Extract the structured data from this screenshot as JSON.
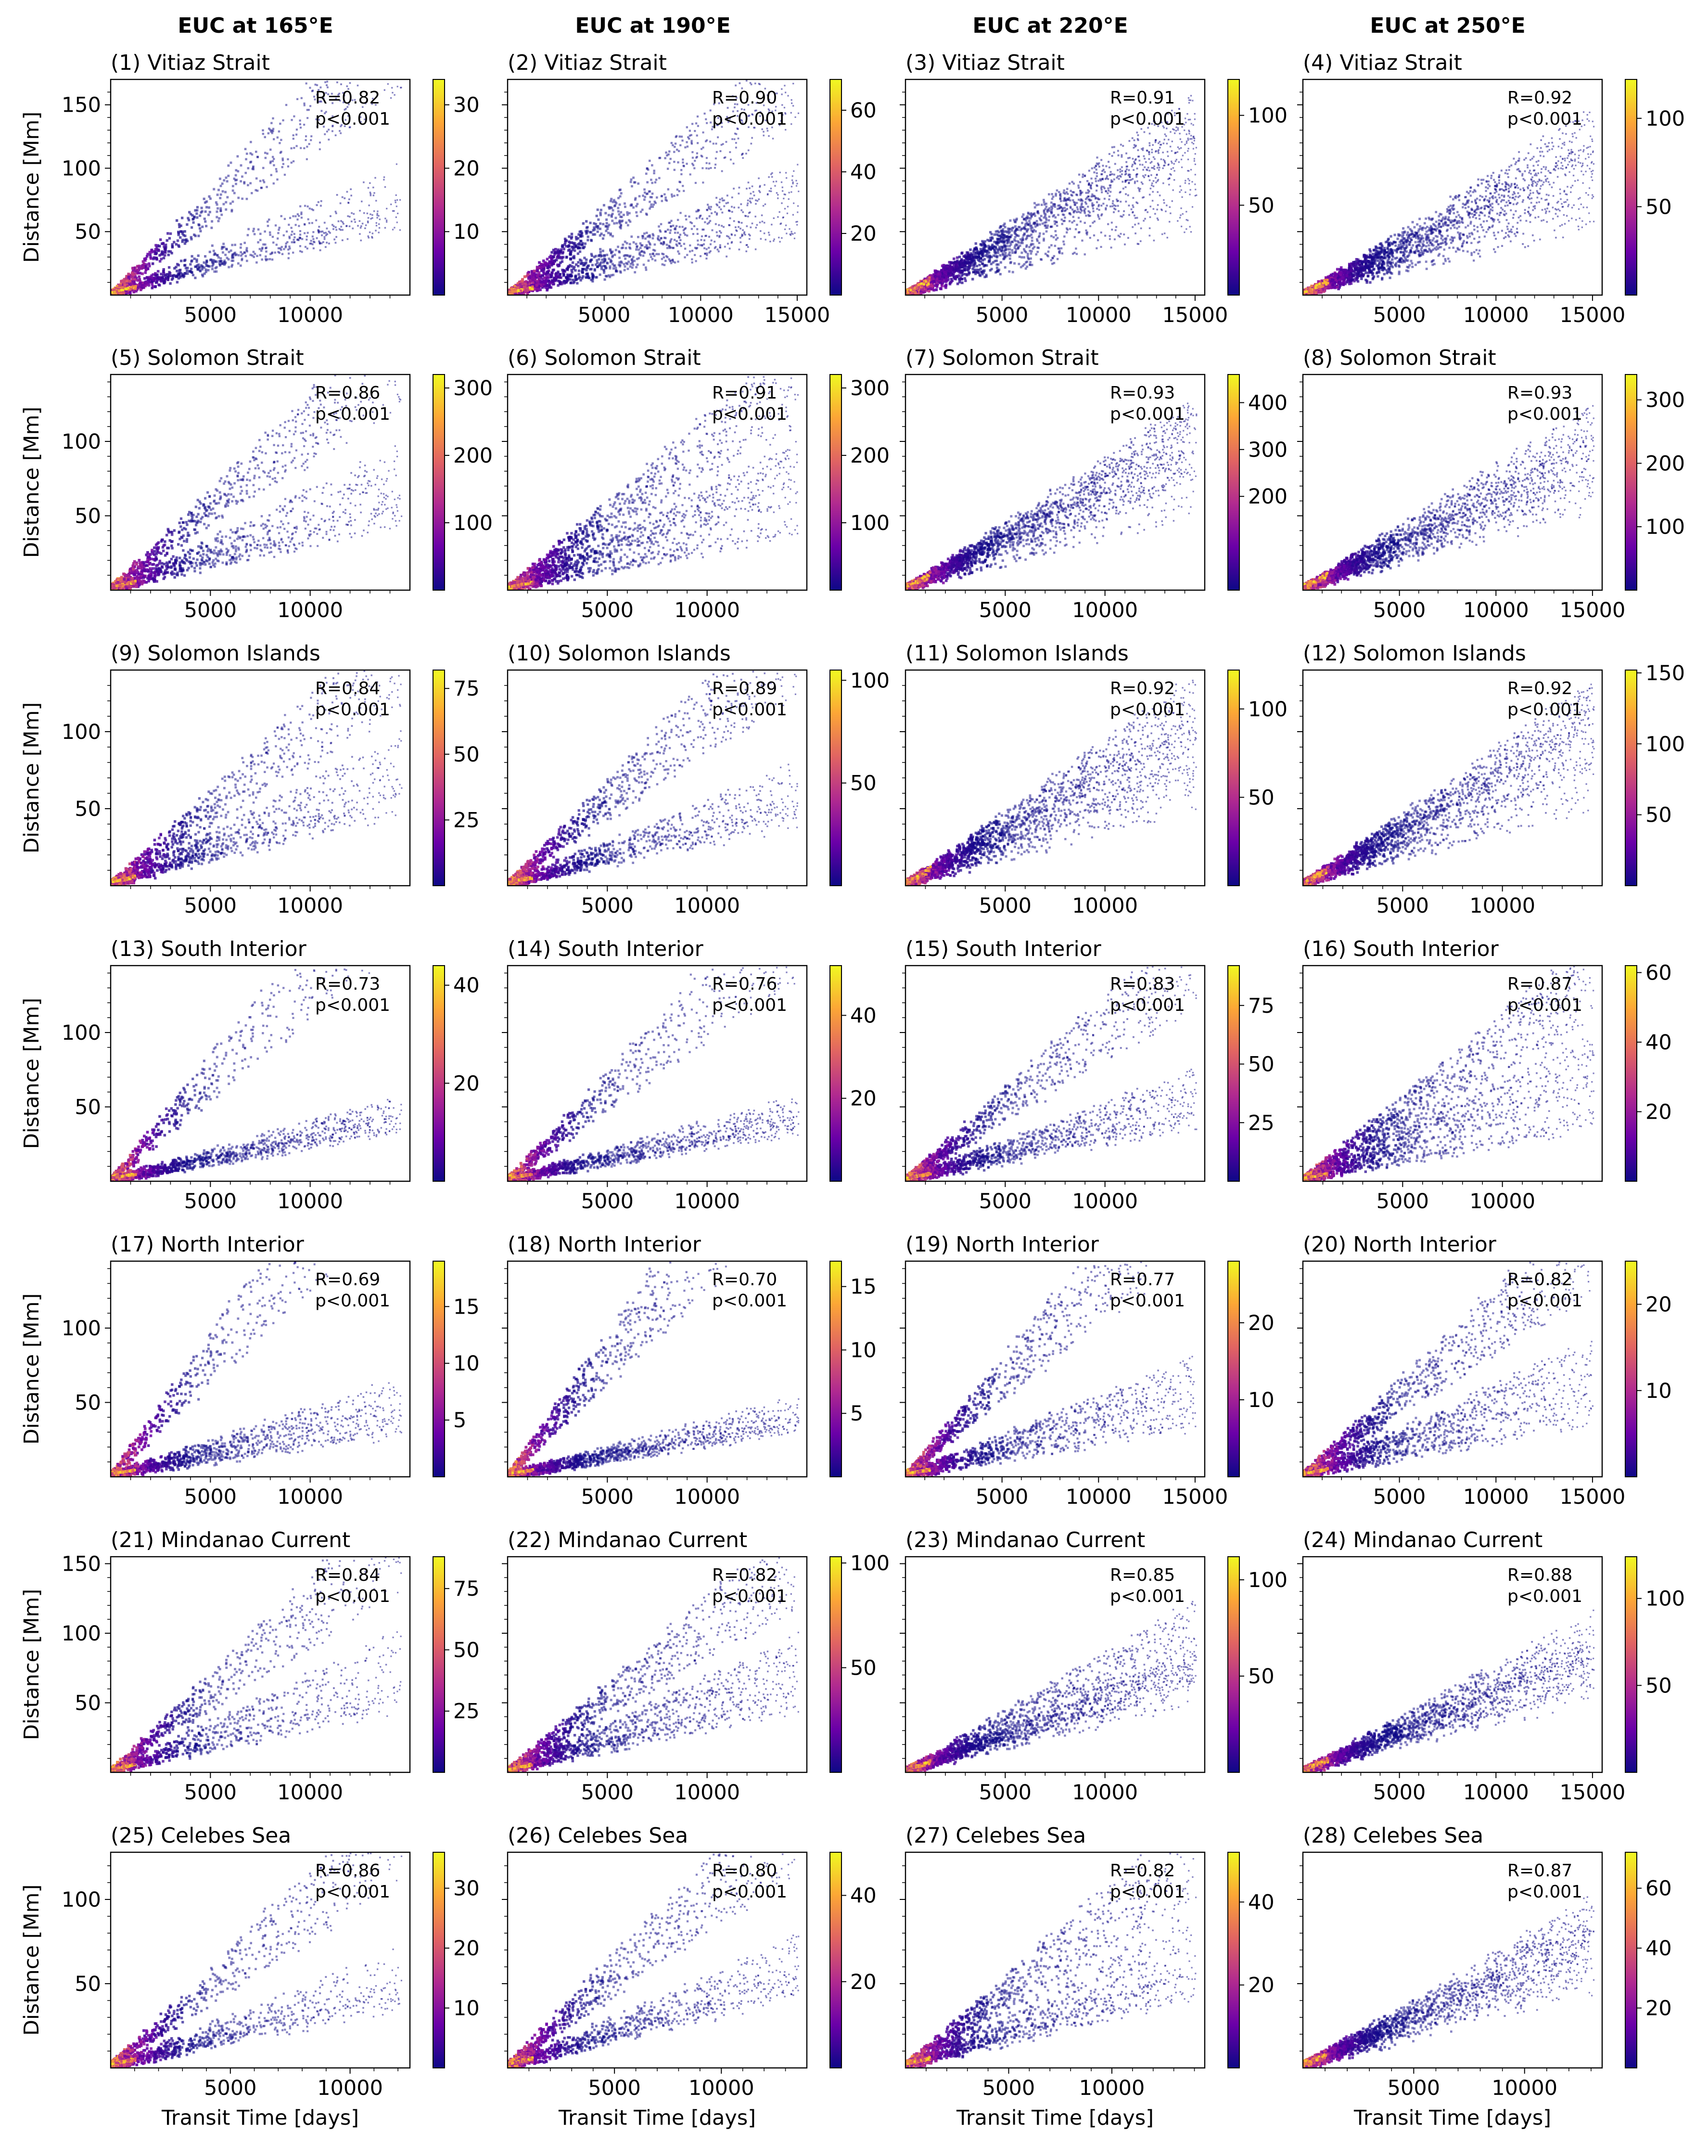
{
  "column_titles": [
    "EUC at 165°E",
    "EUC at 190°E",
    "EUC at 220°E",
    "EUC at 250°E"
  ],
  "shared_labels": {
    "ylabel": "Distance [Mm]",
    "xlabel": "Transit Time [days]"
  },
  "colormap": {
    "name": "plasma",
    "stops": [
      "#0d0887",
      "#6a00a8",
      "#b12a90",
      "#e16462",
      "#fca636",
      "#f0f921"
    ]
  },
  "chart_data": [
    {
      "type": "heatmap",
      "title": "(1) Vitiaz Strait",
      "row": 0,
      "col": 0,
      "stat_r": "R=0.82",
      "stat_p": "p<0.001",
      "xlim": [
        0,
        15000
      ],
      "ylim": [
        0,
        170
      ],
      "xticks": [
        5000,
        10000
      ],
      "yticks": [
        50,
        100,
        150
      ],
      "clim": [
        0,
        34
      ],
      "cticks": [
        10,
        20,
        30
      ],
      "branches": [
        [
          4.2,
          0.35
        ],
        [
          14,
          0.7
        ],
        [
          5.5,
          0.5
        ]
      ]
    },
    {
      "type": "heatmap",
      "title": "(2) Vitiaz Strait",
      "row": 0,
      "col": 1,
      "stat_r": "R=0.90",
      "stat_p": "p<0.001",
      "xlim": [
        0,
        15500
      ],
      "ylim": [
        0,
        170
      ],
      "xticks": [
        5000,
        10000,
        15000
      ],
      "yticks": [],
      "clim": [
        0,
        70
      ],
      "cticks": [
        20,
        40,
        60
      ],
      "branches": [
        [
          3.4,
          0.35
        ],
        [
          11.5,
          0.9
        ],
        [
          5.4,
          0.8
        ]
      ]
    },
    {
      "type": "heatmap",
      "title": "(3) Vitiaz Strait",
      "row": 0,
      "col": 2,
      "stat_r": "R=0.91",
      "stat_p": "p<0.001",
      "xlim": [
        0,
        15500
      ],
      "ylim": [
        0,
        170
      ],
      "xticks": [
        5000,
        10000,
        15000
      ],
      "yticks": [],
      "clim": [
        0,
        120
      ],
      "cticks": [
        50,
        100
      ],
      "branches": [
        [
          9,
          1.0
        ],
        [
          7.5,
          1.0
        ],
        [
          4.5,
          0.4
        ]
      ]
    },
    {
      "type": "heatmap",
      "title": "(4) Vitiaz Strait",
      "row": 0,
      "col": 3,
      "stat_r": "R=0.92",
      "stat_p": "p<0.001",
      "xlim": [
        0,
        15500
      ],
      "ylim": [
        0,
        170
      ],
      "xticks": [
        5000,
        10000,
        15000
      ],
      "yticks": [],
      "clim": [
        0,
        122
      ],
      "cticks": [
        50,
        100
      ],
      "branches": [
        [
          8.3,
          1.0
        ],
        [
          6.5,
          1.0
        ],
        [
          4.5,
          0.4
        ]
      ]
    },
    {
      "type": "heatmap",
      "title": "(5) Solomon Strait",
      "row": 1,
      "col": 0,
      "stat_r": "R=0.86",
      "stat_p": "p<0.001",
      "xlim": [
        0,
        15000
      ],
      "ylim": [
        0,
        145
      ],
      "xticks": [
        5000,
        10000
      ],
      "yticks": [
        50,
        100
      ],
      "clim": [
        0,
        320
      ],
      "cticks": [
        100,
        200,
        300
      ],
      "branches": [
        [
          3.4,
          0.35
        ],
        [
          11,
          0.7
        ],
        [
          5.2,
          0.6
        ]
      ]
    },
    {
      "type": "heatmap",
      "title": "(6) Solomon Strait",
      "row": 1,
      "col": 1,
      "stat_r": "R=0.91",
      "stat_p": "p<0.001",
      "xlim": [
        0,
        15000
      ],
      "ylim": [
        0,
        145
      ],
      "xticks": [
        5000,
        10000
      ],
      "yticks": [],
      "clim": [
        0,
        320
      ],
      "cticks": [
        100,
        200,
        300
      ],
      "branches": [
        [
          2.8,
          0.35
        ],
        [
          9.7,
          0.9
        ],
        [
          5.3,
          0.9
        ]
      ]
    },
    {
      "type": "heatmap",
      "title": "(7) Solomon Strait",
      "row": 1,
      "col": 2,
      "stat_r": "R=0.93",
      "stat_p": "p<0.001",
      "xlim": [
        0,
        15000
      ],
      "ylim": [
        0,
        145
      ],
      "xticks": [
        5000,
        10000
      ],
      "yticks": [],
      "clim": [
        0,
        460
      ],
      "cticks": [
        200,
        300,
        400
      ],
      "branches": [
        [
          7.5,
          1.0
        ],
        [
          6.5,
          1.0
        ],
        [
          4.5,
          0.4
        ]
      ]
    },
    {
      "type": "heatmap",
      "title": "(8) Solomon Strait",
      "row": 1,
      "col": 3,
      "stat_r": "R=0.93",
      "stat_p": "p<0.001",
      "xlim": [
        0,
        15500
      ],
      "ylim": [
        0,
        145
      ],
      "xticks": [
        5000,
        10000,
        15000
      ],
      "yticks": [],
      "clim": [
        0,
        340
      ],
      "cticks": [
        100,
        200,
        300
      ],
      "branches": [
        [
          7.1,
          1.0
        ],
        [
          5.6,
          1.0
        ],
        [
          4.5,
          0.4
        ]
      ]
    },
    {
      "type": "heatmap",
      "title": "(9) Solomon Islands",
      "row": 2,
      "col": 0,
      "stat_r": "R=0.84",
      "stat_p": "p<0.001",
      "xlim": [
        0,
        15000
      ],
      "ylim": [
        0,
        140
      ],
      "xticks": [
        5000,
        10000
      ],
      "yticks": [
        50,
        100
      ],
      "clim": [
        0,
        82
      ],
      "cticks": [
        25,
        50,
        75
      ],
      "branches": [
        [
          3.7,
          0.35
        ],
        [
          10,
          0.7
        ],
        [
          5.3,
          0.6
        ]
      ]
    },
    {
      "type": "heatmap",
      "title": "(10) Solomon Islands",
      "row": 2,
      "col": 1,
      "stat_r": "R=0.89",
      "stat_p": "p<0.001",
      "xlim": [
        0,
        15000
      ],
      "ylim": [
        0,
        140
      ],
      "xticks": [
        5000,
        10000
      ],
      "yticks": [],
      "clim": [
        0,
        105
      ],
      "cticks": [
        50,
        100
      ],
      "branches": [
        [
          3.1,
          0.35
        ],
        [
          11,
          0.9
        ],
        [
          4.2,
          0.7
        ]
      ]
    },
    {
      "type": "heatmap",
      "title": "(11) Solomon Islands",
      "row": 2,
      "col": 2,
      "stat_r": "R=0.92",
      "stat_p": "p<0.001",
      "xlim": [
        0,
        15000
      ],
      "ylim": [
        0,
        140
      ],
      "xticks": [
        5000,
        10000
      ],
      "yticks": [],
      "clim": [
        0,
        122
      ],
      "cticks": [
        50,
        100
      ],
      "branches": [
        [
          8,
          1.0
        ],
        [
          6.2,
          0.9
        ],
        [
          4.5,
          0.4
        ]
      ]
    },
    {
      "type": "heatmap",
      "title": "(12) Solomon Islands",
      "row": 2,
      "col": 3,
      "stat_r": "R=0.92",
      "stat_p": "p<0.001",
      "xlim": [
        0,
        15000
      ],
      "ylim": [
        0,
        140
      ],
      "xticks": [
        5000,
        10000
      ],
      "yticks": [],
      "clim": [
        0,
        152
      ],
      "cticks": [
        50,
        100,
        150
      ],
      "branches": [
        [
          7.8,
          1.0
        ],
        [
          6.5,
          0.9
        ],
        [
          4.5,
          0.4
        ]
      ]
    },
    {
      "type": "heatmap",
      "title": "(13) South Interior",
      "row": 3,
      "col": 0,
      "stat_r": "R=0.73",
      "stat_p": "p<0.001",
      "xlim": [
        0,
        15000
      ],
      "ylim": [
        0,
        145
      ],
      "xticks": [
        5000,
        10000
      ],
      "yticks": [
        50,
        100
      ],
      "clim": [
        0,
        44
      ],
      "cticks": [
        20,
        40
      ],
      "branches": [
        [
          2.6,
          0.35
        ],
        [
          14,
          0.6
        ],
        [
          3,
          0.9
        ]
      ]
    },
    {
      "type": "heatmap",
      "title": "(14) South Interior",
      "row": 3,
      "col": 1,
      "stat_r": "R=0.76",
      "stat_p": "p<0.001",
      "xlim": [
        0,
        15000
      ],
      "ylim": [
        0,
        145
      ],
      "xticks": [
        5000,
        10000
      ],
      "yticks": [],
      "clim": [
        0,
        52
      ],
      "cticks": [
        20,
        40
      ],
      "branches": [
        [
          2.6,
          0.35
        ],
        [
          12,
          0.7
        ],
        [
          3,
          0.9
        ]
      ]
    },
    {
      "type": "heatmap",
      "title": "(15) South Interior",
      "row": 3,
      "col": 2,
      "stat_r": "R=0.83",
      "stat_p": "p<0.001",
      "xlim": [
        0,
        15000
      ],
      "ylim": [
        0,
        145
      ],
      "xticks": [
        5000,
        10000
      ],
      "yticks": [],
      "clim": [
        0,
        92
      ],
      "cticks": [
        25,
        50,
        75
      ],
      "branches": [
        [
          2.8,
          0.35
        ],
        [
          10.3,
          0.9
        ],
        [
          4,
          0.9
        ]
      ]
    },
    {
      "type": "heatmap",
      "title": "(16) South Interior",
      "row": 3,
      "col": 3,
      "stat_r": "R=0.87",
      "stat_p": "p<0.001",
      "xlim": [
        0,
        15000
      ],
      "ylim": [
        0,
        145
      ],
      "xticks": [
        5000,
        10000
      ],
      "yticks": [],
      "clim": [
        0,
        62
      ],
      "cticks": [
        20,
        40,
        60
      ],
      "branches": [
        [
          2.8,
          0.3
        ],
        [
          9.2,
          1.0
        ],
        [
          5.2,
          0.9
        ]
      ]
    },
    {
      "type": "heatmap",
      "title": "(17) North Interior",
      "row": 4,
      "col": 0,
      "stat_r": "R=0.69",
      "stat_p": "p<0.001",
      "xlim": [
        0,
        15000
      ],
      "ylim": [
        0,
        145
      ],
      "xticks": [
        5000,
        10000
      ],
      "yticks": [
        50,
        100
      ],
      "clim": [
        0,
        19
      ],
      "cticks": [
        5,
        10,
        15
      ],
      "branches": [
        [
          2.2,
          0.4
        ],
        [
          16,
          0.6
        ],
        [
          3.5,
          0.8
        ]
      ]
    },
    {
      "type": "heatmap",
      "title": "(18) North Interior",
      "row": 4,
      "col": 1,
      "stat_r": "R=0.70",
      "stat_p": "p<0.001",
      "xlim": [
        0,
        15000
      ],
      "ylim": [
        0,
        145
      ],
      "xticks": [
        5000,
        10000
      ],
      "yticks": [],
      "clim": [
        0,
        17
      ],
      "cticks": [
        5,
        10,
        15
      ],
      "branches": [
        [
          2.3,
          0.4
        ],
        [
          16,
          0.9
        ],
        [
          2.8,
          0.9
        ]
      ]
    },
    {
      "type": "heatmap",
      "title": "(19) North Interior",
      "row": 4,
      "col": 2,
      "stat_r": "R=0.77",
      "stat_p": "p<0.001",
      "xlim": [
        0,
        15500
      ],
      "ylim": [
        0,
        145
      ],
      "xticks": [
        5000,
        10000,
        15000
      ],
      "yticks": [],
      "clim": [
        0,
        28
      ],
      "cticks": [
        10,
        20
      ],
      "branches": [
        [
          2.5,
          0.35
        ],
        [
          13,
          0.9
        ],
        [
          4.2,
          0.9
        ]
      ]
    },
    {
      "type": "heatmap",
      "title": "(20) North Interior",
      "row": 4,
      "col": 3,
      "stat_r": "R=0.82",
      "stat_p": "p<0.001",
      "xlim": [
        0,
        15500
      ],
      "ylim": [
        0,
        145
      ],
      "xticks": [
        5000,
        10000,
        15000
      ],
      "yticks": [],
      "clim": [
        0,
        25
      ],
      "cticks": [
        10,
        20
      ],
      "branches": [
        [
          2.7,
          0.35
        ],
        [
          10.5,
          1.0
        ],
        [
          4.8,
          0.9
        ]
      ]
    },
    {
      "type": "heatmap",
      "title": "(21) Mindanao Current",
      "row": 5,
      "col": 0,
      "stat_r": "R=0.84",
      "stat_p": "p<0.001",
      "xlim": [
        0,
        15000
      ],
      "ylim": [
        0,
        155
      ],
      "xticks": [
        5000,
        10000
      ],
      "yticks": [
        50,
        100,
        150
      ],
      "clim": [
        0,
        88
      ],
      "cticks": [
        25,
        50,
        75
      ],
      "branches": [
        [
          3.6,
          0.35
        ],
        [
          11.5,
          0.7
        ],
        [
          5.5,
          0.5
        ]
      ]
    },
    {
      "type": "heatmap",
      "title": "(22) Mindanao Current",
      "row": 5,
      "col": 1,
      "stat_r": "R=0.82",
      "stat_p": "p<0.001",
      "xlim": [
        0,
        15000
      ],
      "ylim": [
        0,
        155
      ],
      "xticks": [
        5000,
        10000
      ],
      "yticks": [],
      "clim": [
        0,
        103
      ],
      "cticks": [
        50,
        100
      ],
      "branches": [
        [
          3.5,
          0.35
        ],
        [
          10.5,
          0.9
        ],
        [
          5.3,
          0.8
        ]
      ]
    },
    {
      "type": "heatmap",
      "title": "(23) Mindanao Current",
      "row": 5,
      "col": 2,
      "stat_r": "R=0.85",
      "stat_p": "p<0.001",
      "xlim": [
        0,
        15000
      ],
      "ylim": [
        0,
        155
      ],
      "xticks": [
        5000,
        10000
      ],
      "yticks": [],
      "clim": [
        0,
        112
      ],
      "cticks": [
        50,
        100
      ],
      "branches": [
        [
          5,
          0.9
        ],
        [
          7,
          0.9
        ],
        [
          4.5,
          0.5
        ]
      ]
    },
    {
      "type": "heatmap",
      "title": "(24) Mindanao Current",
      "row": 5,
      "col": 3,
      "stat_r": "R=0.88",
      "stat_p": "p<0.001",
      "xlim": [
        0,
        15500
      ],
      "ylim": [
        0,
        155
      ],
      "xticks": [
        5000,
        10000,
        15000
      ],
      "yticks": [],
      "clim": [
        0,
        124
      ],
      "cticks": [
        50,
        100
      ],
      "branches": [
        [
          6.5,
          1.0
        ],
        [
          5.2,
          1.0
        ],
        [
          4.5,
          0.4
        ]
      ]
    },
    {
      "type": "heatmap",
      "title": "(25) Celebes Sea",
      "row": 6,
      "col": 0,
      "stat_r": "R=0.86",
      "stat_p": "p<0.001",
      "xlim": [
        0,
        12500
      ],
      "ylim": [
        0,
        128
      ],
      "xticks": [
        5000,
        10000
      ],
      "yticks": [
        50,
        100
      ],
      "clim": [
        0,
        36
      ],
      "cticks": [
        10,
        20,
        30
      ],
      "branches": [
        [
          3.4,
          0.35
        ],
        [
          11.5,
          0.7
        ],
        [
          4.5,
          0.5
        ]
      ]
    },
    {
      "type": "heatmap",
      "title": "(26) Celebes Sea",
      "row": 6,
      "col": 1,
      "stat_r": "R=0.80",
      "stat_p": "p<0.001",
      "xlim": [
        0,
        14000
      ],
      "ylim": [
        0,
        128
      ],
      "xticks": [
        5000,
        10000
      ],
      "yticks": [],
      "clim": [
        0,
        50
      ],
      "cticks": [
        20,
        40
      ],
      "branches": [
        [
          3.6,
          0.4
        ],
        [
          11,
          0.8
        ],
        [
          4.5,
          0.6
        ]
      ]
    },
    {
      "type": "heatmap",
      "title": "(27) Celebes Sea",
      "row": 6,
      "col": 2,
      "stat_r": "R=0.82",
      "stat_p": "p<0.001",
      "xlim": [
        0,
        14500
      ],
      "ylim": [
        0,
        128
      ],
      "xticks": [
        5000,
        10000
      ],
      "yticks": [],
      "clim": [
        0,
        52
      ],
      "cticks": [
        20,
        40
      ],
      "branches": [
        [
          3.5,
          0.5
        ],
        [
          9,
          0.9
        ],
        [
          5,
          0.6
        ]
      ]
    },
    {
      "type": "heatmap",
      "title": "(28) Celebes Sea",
      "row": 6,
      "col": 3,
      "stat_r": "R=0.87",
      "stat_p": "p<0.001",
      "xlim": [
        0,
        13500
      ],
      "ylim": [
        0,
        128
      ],
      "xticks": [
        5000,
        10000
      ],
      "yticks": [],
      "clim": [
        0,
        72
      ],
      "cticks": [
        20,
        40,
        60
      ],
      "branches": [
        [
          6.5,
          1.0
        ],
        [
          5.5,
          0.9
        ],
        [
          4.5,
          0.4
        ]
      ]
    }
  ]
}
